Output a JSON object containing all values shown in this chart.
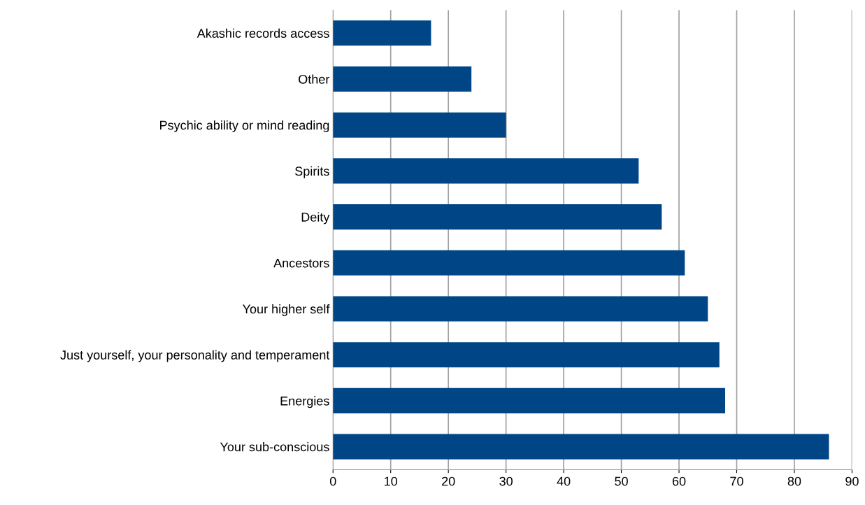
{
  "chart_data": {
    "type": "bar",
    "orientation": "horizontal",
    "categories": [
      "Akashic records access",
      "Other",
      "Psychic ability or mind reading",
      "Spirits",
      "Deity",
      "Ancestors",
      "Your higher self",
      "Just yourself, your personality and temperament",
      "Energies",
      "Your sub-conscious"
    ],
    "values": [
      17,
      24,
      30,
      53,
      57,
      61,
      65,
      67,
      68,
      86
    ],
    "color": "#004586",
    "xlim": [
      0,
      90
    ],
    "xticks": [
      0,
      10,
      20,
      30,
      40,
      50,
      60,
      70,
      80,
      90
    ],
    "grid": "x"
  }
}
